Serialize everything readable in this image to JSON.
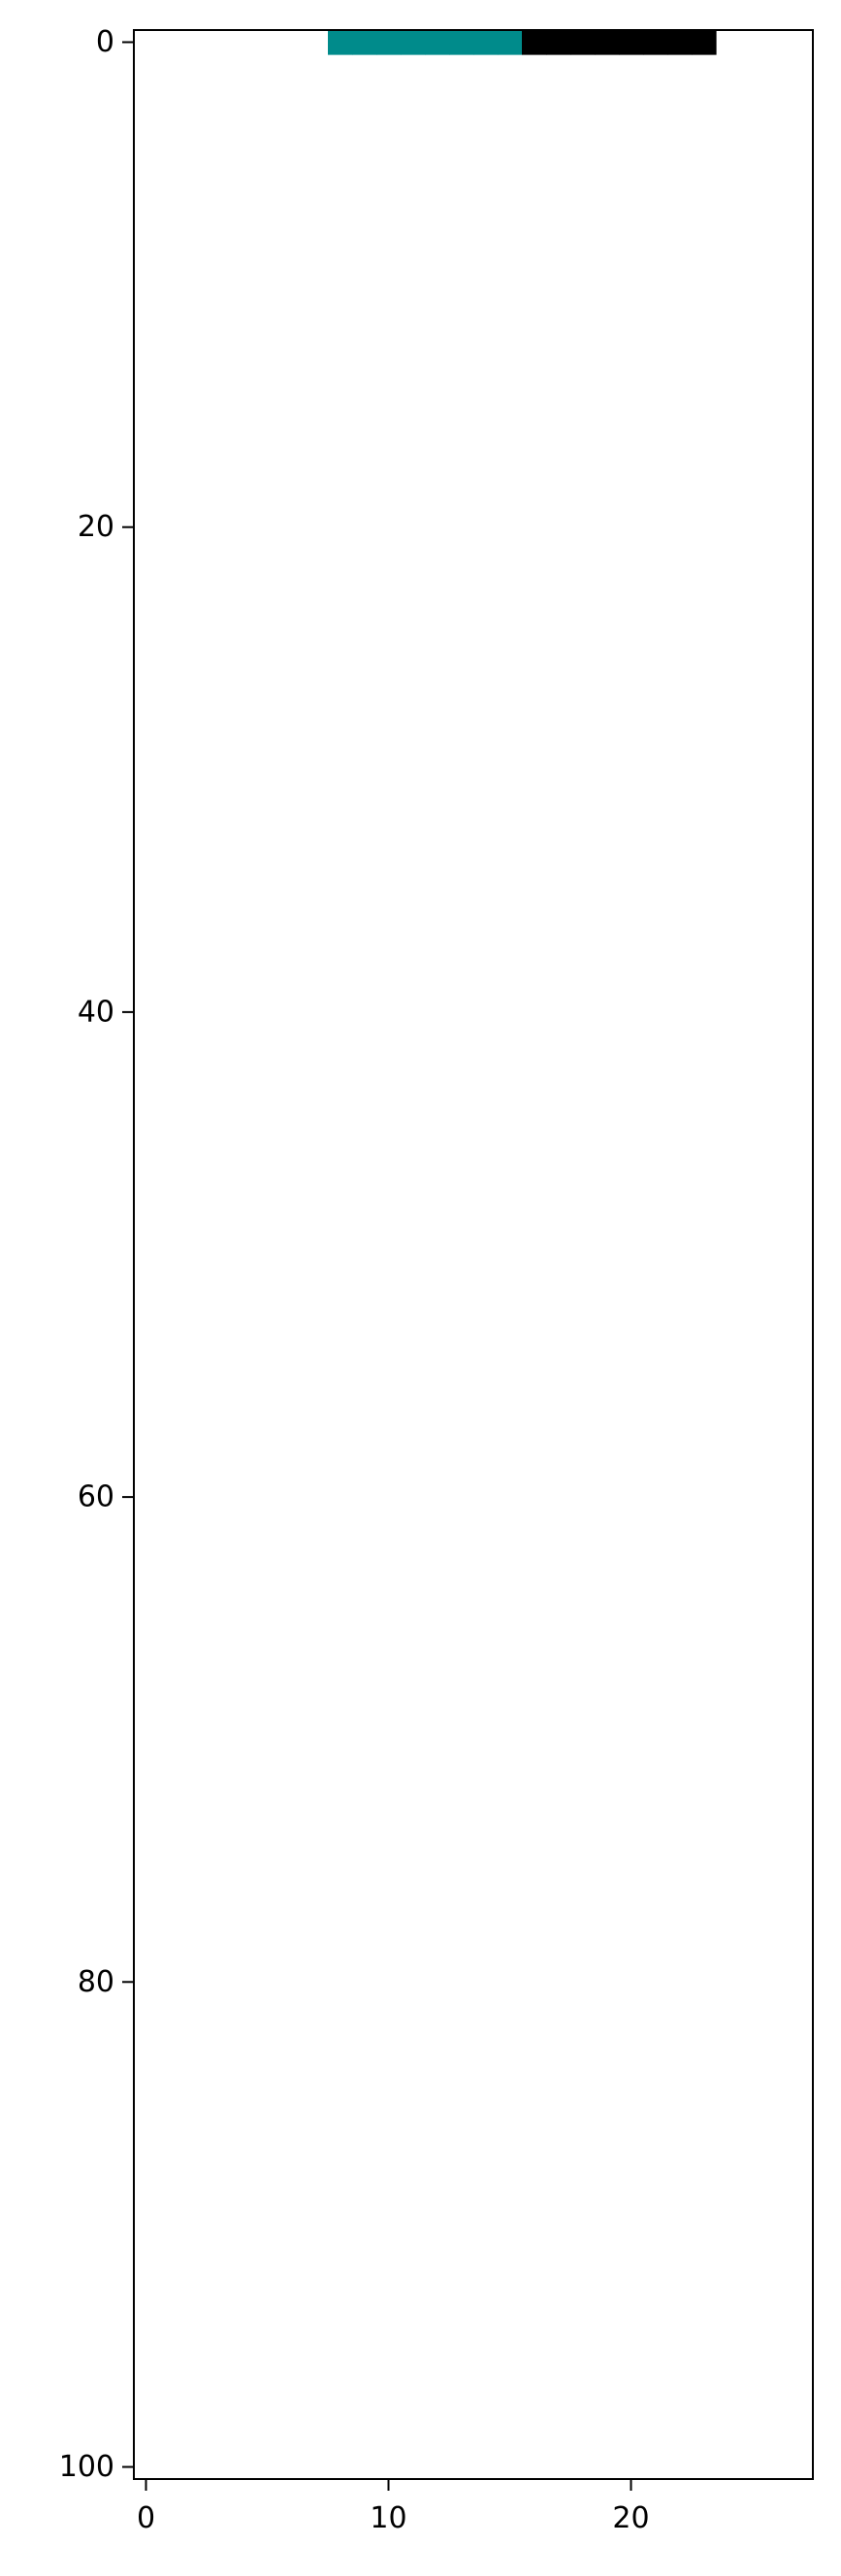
{
  "chart_data": {
    "type": "heatmap",
    "title": "",
    "xlabel": "",
    "ylabel": "",
    "xlim": [
      -0.5,
      27.5
    ],
    "ylim": [
      100.5,
      -0.5
    ],
    "grid": false,
    "legend": "none",
    "x_ticks": [
      0,
      10,
      20
    ],
    "y_ticks": [
      0,
      20,
      40,
      60,
      80,
      100
    ],
    "x_tick_labels": [
      "0",
      "10",
      "20"
    ],
    "y_tick_labels": [
      "0",
      "20",
      "40",
      "60",
      "80",
      "100"
    ],
    "values_legend": {
      "0": "background (white)",
      "1": "black pixel",
      "2": "teal pixel"
    },
    "colors": {
      "0": "#ffffff",
      "1": "#000000",
      "2": "#008b8b"
    },
    "grid_rows": [
      "0000000022222222111111110000",
      "0000000000000000000000000000",
      "0000000000000000000000000000",
      "0000000000000000000000000000",
      "0000000000000000000000000000",
      "0000000000000000000000000000",
      "0000000000000000000000000000",
      "0000000000000000000000000000",
      "0000000000000000000000000000",
      "0000000000000000000000000000"
    ]
  }
}
